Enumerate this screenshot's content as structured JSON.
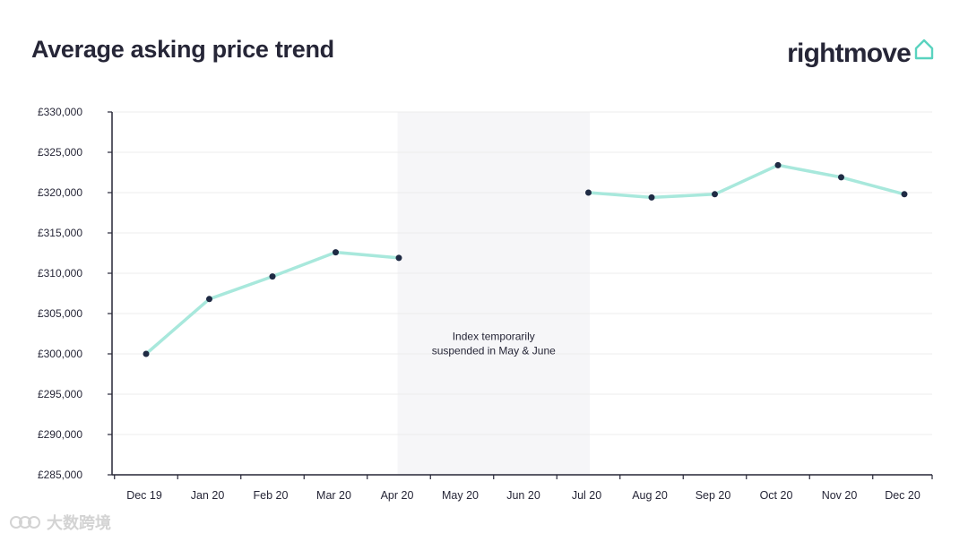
{
  "header": {
    "title": "Average asking price trend",
    "brand": "rightmove"
  },
  "colors": {
    "line": "#a8e8dc",
    "point": "#1f2b44",
    "text": "#262637",
    "axis": "#262637",
    "grid": "#ececec",
    "band": "#f6f6f8",
    "brand_accent": "#5ad3bf"
  },
  "chart_data": {
    "type": "line",
    "title": "Average asking price trend",
    "xlabel": "",
    "ylabel": "",
    "categories": [
      "Dec 19",
      "Jan 20",
      "Feb 20",
      "Mar 20",
      "Apr 20",
      "May 20",
      "Jun 20",
      "Jul 20",
      "Aug 20",
      "Sep 20",
      "Oct 20",
      "Nov 20",
      "Dec 20"
    ],
    "series": [
      {
        "name": "Average asking price",
        "values": [
          300000,
          306800,
          309600,
          312600,
          311900,
          null,
          null,
          320000,
          319400,
          319800,
          323400,
          321900,
          319800
        ]
      }
    ],
    "ylim": [
      285000,
      330000
    ],
    "yticks": [
      285000,
      290000,
      295000,
      300000,
      305000,
      310000,
      315000,
      320000,
      325000,
      330000
    ],
    "ytick_labels": [
      "£285,000",
      "£290,000",
      "£295,000",
      "£300,000",
      "£305,000",
      "£310,000",
      "£315,000",
      "£320,000",
      "£325,000",
      "£330,000"
    ],
    "grid": true,
    "annotation": {
      "lines": [
        "Index temporarily",
        "suspended in May & June"
      ],
      "span": [
        "May 20",
        "Jun 20"
      ]
    }
  },
  "watermark": {
    "text": "大数跨境"
  }
}
